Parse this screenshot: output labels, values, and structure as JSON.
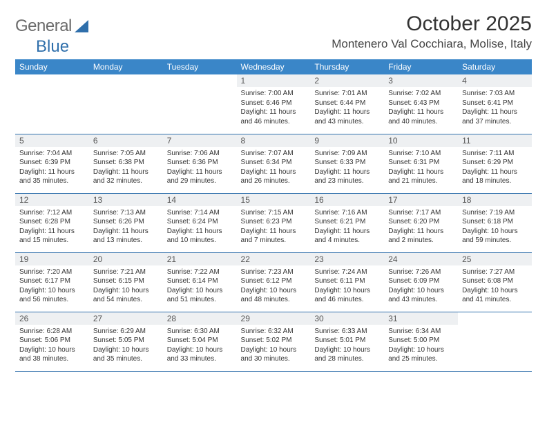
{
  "logo": {
    "text1": "General",
    "text2": "Blue"
  },
  "title": "October 2025",
  "location": "Montenero Val Cocchiara, Molise, Italy",
  "colors": {
    "header_bg": "#3a86c8",
    "header_text": "#ffffff",
    "daynum_bg": "#eef0f2",
    "row_border": "#2f6fab",
    "logo_blue": "#2f6fab",
    "logo_gray": "#6a6a6a"
  },
  "weekdays": [
    "Sunday",
    "Monday",
    "Tuesday",
    "Wednesday",
    "Thursday",
    "Friday",
    "Saturday"
  ],
  "startOffset": 3,
  "daysInMonth": 31,
  "days": {
    "1": {
      "sunrise": "7:00 AM",
      "sunset": "6:46 PM",
      "daylight": "11 hours and 46 minutes."
    },
    "2": {
      "sunrise": "7:01 AM",
      "sunset": "6:44 PM",
      "daylight": "11 hours and 43 minutes."
    },
    "3": {
      "sunrise": "7:02 AM",
      "sunset": "6:43 PM",
      "daylight": "11 hours and 40 minutes."
    },
    "4": {
      "sunrise": "7:03 AM",
      "sunset": "6:41 PM",
      "daylight": "11 hours and 37 minutes."
    },
    "5": {
      "sunrise": "7:04 AM",
      "sunset": "6:39 PM",
      "daylight": "11 hours and 35 minutes."
    },
    "6": {
      "sunrise": "7:05 AM",
      "sunset": "6:38 PM",
      "daylight": "11 hours and 32 minutes."
    },
    "7": {
      "sunrise": "7:06 AM",
      "sunset": "6:36 PM",
      "daylight": "11 hours and 29 minutes."
    },
    "8": {
      "sunrise": "7:07 AM",
      "sunset": "6:34 PM",
      "daylight": "11 hours and 26 minutes."
    },
    "9": {
      "sunrise": "7:09 AM",
      "sunset": "6:33 PM",
      "daylight": "11 hours and 23 minutes."
    },
    "10": {
      "sunrise": "7:10 AM",
      "sunset": "6:31 PM",
      "daylight": "11 hours and 21 minutes."
    },
    "11": {
      "sunrise": "7:11 AM",
      "sunset": "6:29 PM",
      "daylight": "11 hours and 18 minutes."
    },
    "12": {
      "sunrise": "7:12 AM",
      "sunset": "6:28 PM",
      "daylight": "11 hours and 15 minutes."
    },
    "13": {
      "sunrise": "7:13 AM",
      "sunset": "6:26 PM",
      "daylight": "11 hours and 13 minutes."
    },
    "14": {
      "sunrise": "7:14 AM",
      "sunset": "6:24 PM",
      "daylight": "11 hours and 10 minutes."
    },
    "15": {
      "sunrise": "7:15 AM",
      "sunset": "6:23 PM",
      "daylight": "11 hours and 7 minutes."
    },
    "16": {
      "sunrise": "7:16 AM",
      "sunset": "6:21 PM",
      "daylight": "11 hours and 4 minutes."
    },
    "17": {
      "sunrise": "7:17 AM",
      "sunset": "6:20 PM",
      "daylight": "11 hours and 2 minutes."
    },
    "18": {
      "sunrise": "7:19 AM",
      "sunset": "6:18 PM",
      "daylight": "10 hours and 59 minutes."
    },
    "19": {
      "sunrise": "7:20 AM",
      "sunset": "6:17 PM",
      "daylight": "10 hours and 56 minutes."
    },
    "20": {
      "sunrise": "7:21 AM",
      "sunset": "6:15 PM",
      "daylight": "10 hours and 54 minutes."
    },
    "21": {
      "sunrise": "7:22 AM",
      "sunset": "6:14 PM",
      "daylight": "10 hours and 51 minutes."
    },
    "22": {
      "sunrise": "7:23 AM",
      "sunset": "6:12 PM",
      "daylight": "10 hours and 48 minutes."
    },
    "23": {
      "sunrise": "7:24 AM",
      "sunset": "6:11 PM",
      "daylight": "10 hours and 46 minutes."
    },
    "24": {
      "sunrise": "7:26 AM",
      "sunset": "6:09 PM",
      "daylight": "10 hours and 43 minutes."
    },
    "25": {
      "sunrise": "7:27 AM",
      "sunset": "6:08 PM",
      "daylight": "10 hours and 41 minutes."
    },
    "26": {
      "sunrise": "6:28 AM",
      "sunset": "5:06 PM",
      "daylight": "10 hours and 38 minutes."
    },
    "27": {
      "sunrise": "6:29 AM",
      "sunset": "5:05 PM",
      "daylight": "10 hours and 35 minutes."
    },
    "28": {
      "sunrise": "6:30 AM",
      "sunset": "5:04 PM",
      "daylight": "10 hours and 33 minutes."
    },
    "29": {
      "sunrise": "6:32 AM",
      "sunset": "5:02 PM",
      "daylight": "10 hours and 30 minutes."
    },
    "30": {
      "sunrise": "6:33 AM",
      "sunset": "5:01 PM",
      "daylight": "10 hours and 28 minutes."
    },
    "31": {
      "sunrise": "6:34 AM",
      "sunset": "5:00 PM",
      "daylight": "10 hours and 25 minutes."
    }
  },
  "labels": {
    "sunrise": "Sunrise: ",
    "sunset": "Sunset: ",
    "daylight": "Daylight: "
  }
}
